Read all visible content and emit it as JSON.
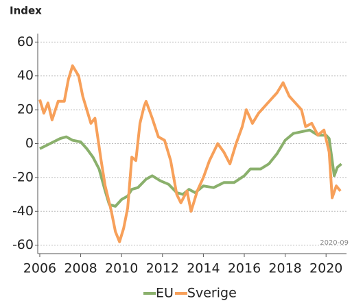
{
  "chart_data": {
    "type": "line",
    "y_label": "Index",
    "annotation": "2020-09",
    "xlim": [
      2005.9,
      2021.0
    ],
    "xticks": [
      2006,
      2008,
      2010,
      2012,
      2014,
      2016,
      2018,
      2020
    ],
    "ylim": [
      -65,
      65
    ],
    "yticks": [
      -60,
      -40,
      -20,
      0,
      20,
      40,
      60
    ],
    "grid": true,
    "legend": "bottom",
    "series": [
      {
        "name": "EU",
        "color": "#8ab06c",
        "x": [
          2006.0,
          2006.5,
          2007.0,
          2007.3,
          2007.6,
          2008.0,
          2008.3,
          2008.6,
          2008.9,
          2009.2,
          2009.4,
          2009.7,
          2010.0,
          2010.3,
          2010.5,
          2010.8,
          2011.2,
          2011.5,
          2011.9,
          2012.3,
          2012.7,
          2013.0,
          2013.3,
          2013.6,
          2014.0,
          2014.5,
          2015.0,
          2015.5,
          2016.0,
          2016.3,
          2016.8,
          2017.2,
          2017.6,
          2018.0,
          2018.4,
          2018.8,
          2019.2,
          2019.6,
          2020.0,
          2020.15,
          2020.3,
          2020.4,
          2020.55,
          2020.75
        ],
        "values": [
          -3,
          0,
          3,
          4,
          2,
          1,
          -3,
          -8,
          -15,
          -28,
          -36,
          -37,
          -33,
          -31,
          -27,
          -26,
          -21,
          -19,
          -22,
          -24,
          -29,
          -30,
          -27,
          -29,
          -25,
          -26,
          -23,
          -23,
          -19,
          -15,
          -15,
          -12,
          -6,
          2,
          6,
          7,
          8,
          5,
          5,
          3,
          -10,
          -19,
          -14,
          -12
        ]
      },
      {
        "name": "Sverige",
        "color": "#f7a05a",
        "x": [
          2006.0,
          2006.2,
          2006.4,
          2006.6,
          2006.9,
          2007.2,
          2007.4,
          2007.6,
          2007.9,
          2008.1,
          2008.3,
          2008.5,
          2008.7,
          2009.0,
          2009.2,
          2009.5,
          2009.7,
          2009.9,
          2010.1,
          2010.3,
          2010.5,
          2010.7,
          2010.9,
          2011.1,
          2011.2,
          2011.5,
          2011.8,
          2012.1,
          2012.4,
          2012.7,
          2012.9,
          2013.2,
          2013.4,
          2013.7,
          2014.0,
          2014.3,
          2014.7,
          2015.0,
          2015.3,
          2015.6,
          2015.9,
          2016.1,
          2016.4,
          2016.7,
          2017.0,
          2017.3,
          2017.6,
          2017.9,
          2018.2,
          2018.5,
          2018.8,
          2019.0,
          2019.3,
          2019.6,
          2019.9,
          2020.15,
          2020.3,
          2020.5,
          2020.7
        ],
        "values": [
          26,
          18,
          24,
          14,
          25,
          25,
          38,
          46,
          40,
          28,
          20,
          12,
          15,
          -10,
          -25,
          -40,
          -52,
          -58,
          -50,
          -38,
          -8,
          -10,
          12,
          22,
          25,
          15,
          4,
          2,
          -10,
          -30,
          -35,
          -28,
          -40,
          -28,
          -20,
          -10,
          0,
          -5,
          -12,
          0,
          10,
          20,
          12,
          18,
          22,
          26,
          30,
          36,
          28,
          24,
          20,
          10,
          12,
          5,
          8,
          -5,
          -32,
          -25,
          -28
        ]
      }
    ]
  }
}
